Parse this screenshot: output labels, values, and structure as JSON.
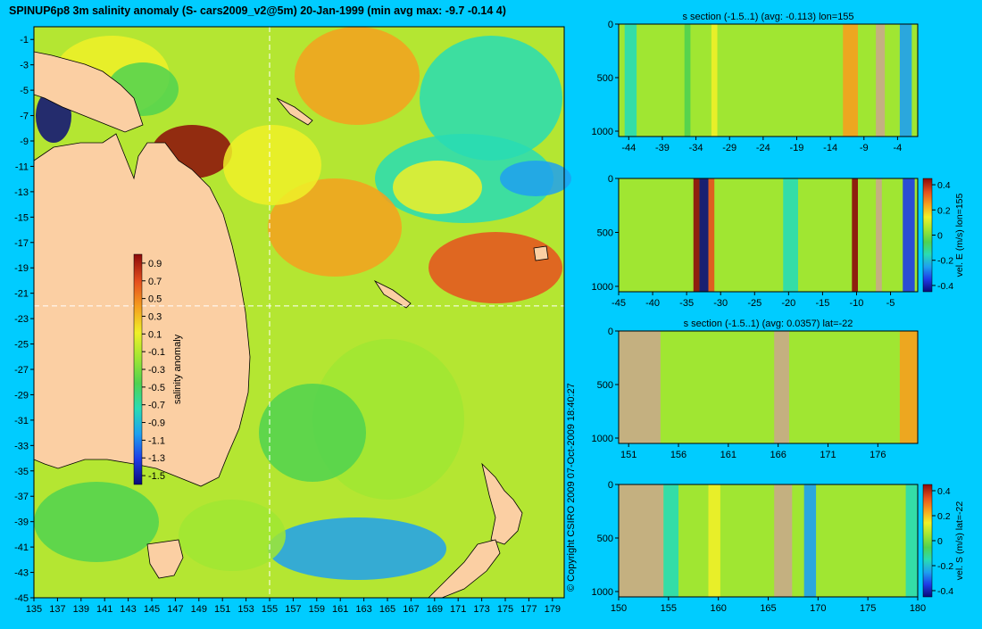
{
  "main_title": "SPINUP6p8 3m salinity anomaly (S- cars2009_v2@5m) 20-Jan-1999 (min avg max: -9.7 -0.14 4)",
  "copyright": "© Copyright CSIRO 2009   07-Oct-2009 18:40:27",
  "colors": {
    "background": "#00ccff",
    "land": "#fbcfa3",
    "section_mask": "#c8aa88",
    "colormap": [
      "#0a0a78",
      "#1e3ce6",
      "#1ea0f0",
      "#28dcb4",
      "#50d250",
      "#a0e632",
      "#f0f028",
      "#f5a01e",
      "#e6501e",
      "#8c0a0a"
    ]
  },
  "chart_data": [
    {
      "id": "map",
      "type": "heatmap",
      "variable": "salinity anomaly",
      "x_ticks": [
        135,
        137,
        139,
        141,
        143,
        145,
        147,
        149,
        151,
        153,
        155,
        157,
        159,
        161,
        163,
        165,
        167,
        169,
        171,
        173,
        175,
        177,
        179
      ],
      "y_ticks": [
        -1,
        -3,
        -5,
        -7,
        -9,
        -11,
        -13,
        -15,
        -17,
        -19,
        -21,
        -23,
        -25,
        -27,
        -29,
        -31,
        -33,
        -35,
        -37,
        -39,
        -41,
        -43,
        -45
      ],
      "xlim": [
        135,
        180
      ],
      "ylim": [
        -45,
        0
      ],
      "marker_lon": 155,
      "marker_lat": -22,
      "colorbar": {
        "label": "salinity anomaly",
        "ticks": [
          0.9,
          0.7,
          0.5,
          0.3,
          0.1,
          -0.1,
          -0.3,
          -0.5,
          -0.7,
          -0.9,
          -1.1,
          -1.3,
          -1.5
        ],
        "range": [
          -1.6,
          1.0
        ]
      }
    },
    {
      "id": "section1",
      "type": "heatmap",
      "title": "s section (-1.5..1) (avg: -0.113) lon=155",
      "x_ticks": [
        -44,
        -39,
        -34,
        -29,
        -24,
        -19,
        -14,
        -9,
        -4
      ],
      "xlim": [
        -45.5,
        -1
      ],
      "y_ticks": [
        0,
        500,
        1000
      ],
      "ylim": [
        0,
        1050
      ],
      "base_value": -0.05
    },
    {
      "id": "section2",
      "type": "heatmap",
      "title": "",
      "x_ticks": [
        -45,
        -40,
        -35,
        -30,
        -25,
        -20,
        -15,
        -10,
        -5
      ],
      "xlim": [
        -45,
        -1
      ],
      "y_ticks": [
        0,
        500,
        1000
      ],
      "ylim": [
        0,
        1050
      ],
      "base_value": 0,
      "colorbar": {
        "label": "vel. E (m/s) lon=155",
        "ticks": [
          0.4,
          0.2,
          0,
          -0.2,
          -0.4
        ],
        "range": [
          -0.45,
          0.45
        ]
      }
    },
    {
      "id": "section3",
      "type": "heatmap",
      "title": "s section (-1.5..1) (avg: 0.0357) lat=-22",
      "x_ticks": [
        151,
        156,
        161,
        166,
        171,
        176
      ],
      "xlim": [
        150,
        180
      ],
      "y_ticks": [
        0,
        500,
        1000
      ],
      "ylim": [
        0,
        1050
      ],
      "base_value": -0.1
    },
    {
      "id": "section4",
      "type": "heatmap",
      "title": "",
      "x_ticks": [
        150,
        155,
        160,
        165,
        170,
        175,
        180
      ],
      "xlim": [
        150,
        180
      ],
      "y_ticks": [
        0,
        500,
        1000
      ],
      "ylim": [
        0,
        1050
      ],
      "base_value": 0,
      "colorbar": {
        "label": "vel. S (m/s) lat=-22",
        "ticks": [
          0.4,
          0.2,
          0,
          -0.2,
          -0.4
        ],
        "range": [
          -0.45,
          0.45
        ]
      }
    }
  ]
}
